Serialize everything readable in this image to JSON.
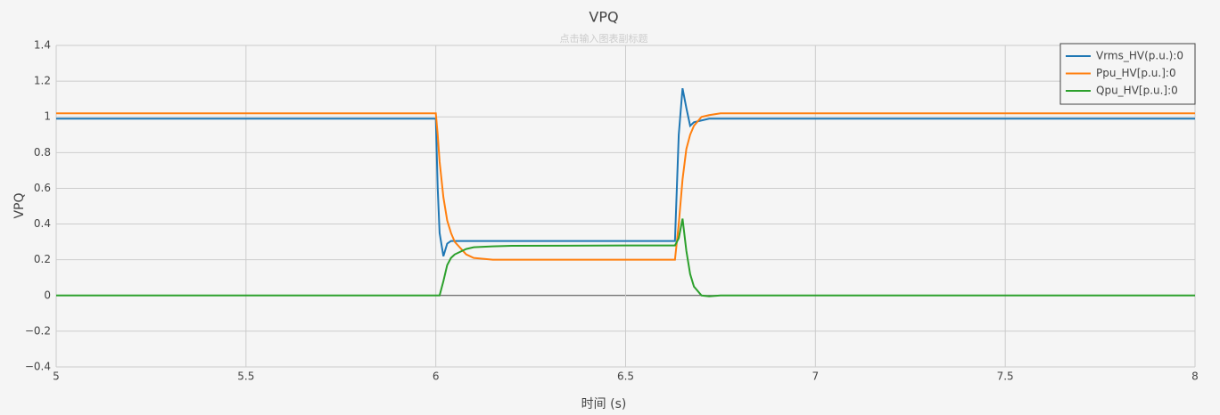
{
  "chart_data": {
    "type": "line",
    "title": "VPQ",
    "subtitle": "点击输入图表副标题",
    "x_label": "时间 (s)",
    "y_label": "VPQ",
    "x": [
      5,
      5.5,
      6,
      6.005,
      6.01,
      6.02,
      6.03,
      6.04,
      6.05,
      6.08,
      6.1,
      6.15,
      6.2,
      6.5,
      6.63,
      6.64,
      6.65,
      6.66,
      6.67,
      6.68,
      6.7,
      6.72,
      6.75,
      7,
      7.5,
      8
    ],
    "series": [
      {
        "name": "Vrms_HV(p.u.):0",
        "color": "#1f77b4",
        "values": [
          0.99,
          0.99,
          0.99,
          0.6,
          0.35,
          0.22,
          0.29,
          0.305,
          0.305,
          0.305,
          0.305,
          0.305,
          0.305,
          0.305,
          0.305,
          0.9,
          1.16,
          1.05,
          0.95,
          0.97,
          0.98,
          0.99,
          0.99,
          0.99,
          0.99,
          0.99
        ]
      },
      {
        "name": "Ppu_HV[p.u.]:0",
        "color": "#ff7f0e",
        "values": [
          1.02,
          1.02,
          1.02,
          0.9,
          0.75,
          0.55,
          0.42,
          0.35,
          0.3,
          0.23,
          0.21,
          0.2,
          0.2,
          0.2,
          0.2,
          0.4,
          0.65,
          0.82,
          0.9,
          0.95,
          1.0,
          1.01,
          1.02,
          1.02,
          1.02,
          1.02
        ]
      },
      {
        "name": "Qpu_HV[p.u.]:0",
        "color": "#2ca02c",
        "values": [
          0,
          0,
          0,
          0,
          0,
          0.08,
          0.17,
          0.21,
          0.23,
          0.26,
          0.27,
          0.275,
          0.278,
          0.28,
          0.28,
          0.32,
          0.43,
          0.25,
          0.12,
          0.05,
          0.0,
          -0.005,
          0,
          0,
          0,
          0
        ]
      }
    ],
    "xlim": [
      5,
      8
    ],
    "xticks": [
      5,
      5.5,
      6,
      6.5,
      7,
      7.5,
      8
    ],
    "ylim": [
      -0.4,
      1.4
    ],
    "yticks": [
      {
        "value": -0.4,
        "label": "−0.4"
      },
      {
        "value": -0.2,
        "label": "−0.2"
      },
      0,
      0.2,
      0.4,
      0.6,
      0.8,
      1,
      1.2,
      1.4
    ],
    "grid": true,
    "legend": "top-right"
  }
}
